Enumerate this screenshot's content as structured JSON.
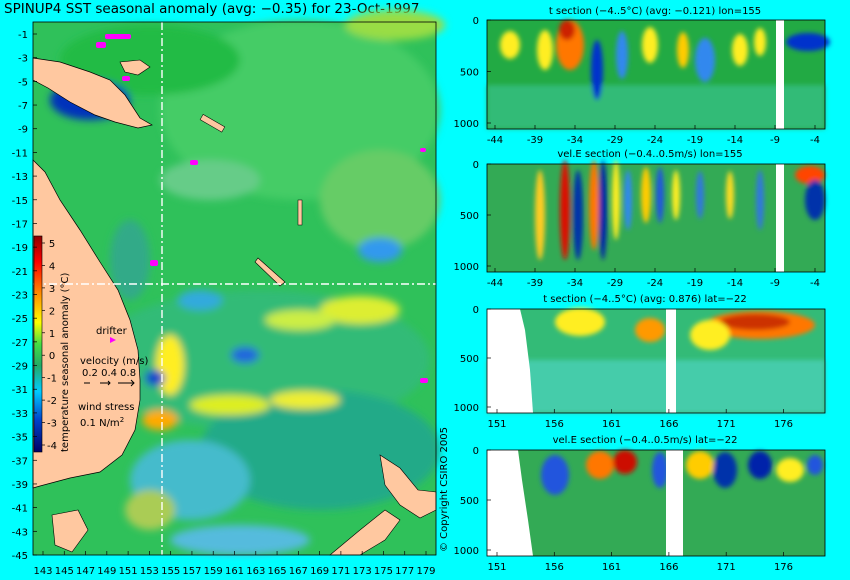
{
  "title": "SPINUP4 SST seasonal anomaly (avg: −0.35) for 23-Oct-1997",
  "copyright": "© Copyright CSIRO 2005",
  "chart_data": [
    {
      "type": "heatmap",
      "name": "map",
      "xticks": [
        "143",
        "145",
        "147",
        "149",
        "151",
        "153",
        "155",
        "157",
        "159",
        "161",
        "163",
        "165",
        "167",
        "169",
        "171",
        "173",
        "175",
        "177",
        "179"
      ],
      "yticks": [
        "-1",
        "-3",
        "-5",
        "-7",
        "-9",
        "-11",
        "-13",
        "-15",
        "-17",
        "-19",
        "-21",
        "-23",
        "-25",
        "-27",
        "-29",
        "-31",
        "-33",
        "-35",
        "-37",
        "-39",
        "-41",
        "-43",
        "-45"
      ],
      "xlim": [
        143,
        180
      ],
      "ylim": [
        -45,
        0
      ],
      "section_lon": 155,
      "section_lat": -22,
      "colorbar": {
        "label": "temperature seasonal anomaly (°C)",
        "ticks": [
          "5",
          "4",
          "3",
          "2",
          "1",
          "0",
          "-1",
          "-2",
          "-3",
          "-4"
        ]
      },
      "legend": {
        "drifter": "drifter",
        "velocity_label": "velocity (m/s)",
        "velocity_scale": "0.2 0.4 0.8",
        "wind_label": "wind stress",
        "wind_scale": "0.1 N/m",
        "wind_exp": "2"
      }
    },
    {
      "type": "heatmap",
      "name": "panel1",
      "title": "t section (−4..5°C) (avg: −0.121) lon=155",
      "xticks": [
        "-44",
        "-39",
        "-34",
        "-29",
        "-24",
        "-19",
        "-14",
        "-9",
        "-4"
      ],
      "yticks": [
        "0",
        "500",
        "1000"
      ]
    },
    {
      "type": "heatmap",
      "name": "panel2",
      "title": "vel.E section (−0.4..0.5m/s) lon=155",
      "xticks": [
        "-44",
        "-39",
        "-34",
        "-29",
        "-24",
        "-19",
        "-14",
        "-9",
        "-4"
      ],
      "yticks": [
        "0",
        "500",
        "1000"
      ]
    },
    {
      "type": "heatmap",
      "name": "panel3",
      "title": "t section (−4..5°C) (avg: 0.876) lat=−22",
      "xticks": [
        "151",
        "156",
        "161",
        "166",
        "171",
        "176"
      ],
      "yticks": [
        "0",
        "500",
        "1000"
      ]
    },
    {
      "type": "heatmap",
      "name": "panel4",
      "title": "vel.E section (−0.4..0.5m/s) lat=−22",
      "xticks": [
        "151",
        "156",
        "161",
        "166",
        "171",
        "176"
      ],
      "yticks": [
        "0",
        "500",
        "1000"
      ]
    }
  ]
}
